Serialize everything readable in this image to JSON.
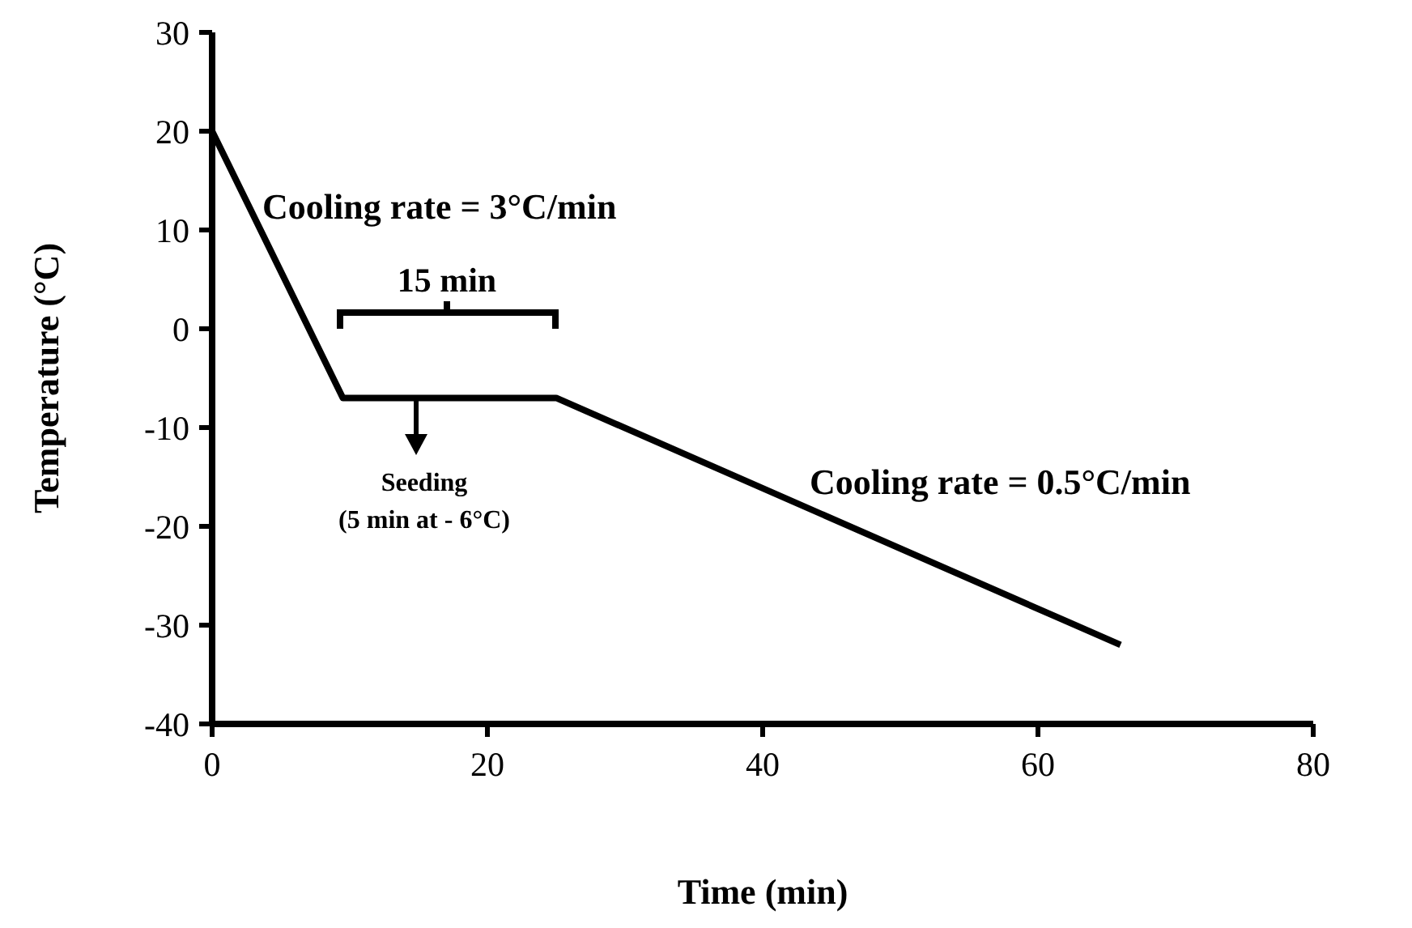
{
  "chart_data": {
    "type": "line",
    "xlabel": "Time (min)",
    "ylabel": "Temperature (°C)",
    "x": [
      0,
      9.5,
      25,
      66
    ],
    "series": [
      {
        "color": "#000000",
        "values": [
          20,
          -7,
          -7,
          -32
        ]
      }
    ],
    "xlim": [
      0,
      80
    ],
    "xticks": [
      0,
      20,
      40,
      60,
      80
    ],
    "ylim": [
      -40,
      30
    ],
    "yticks": [
      -40,
      -30,
      -20,
      -10,
      0,
      10,
      20,
      30
    ],
    "grid": false,
    "marker": "none",
    "line_style": "solid",
    "annotations": [
      "Cooling rate = 3°C/min",
      "15 min",
      "Seeding\n(5 min at - 6°C)",
      "Cooling rate = 0.5°C/min"
    ]
  }
}
